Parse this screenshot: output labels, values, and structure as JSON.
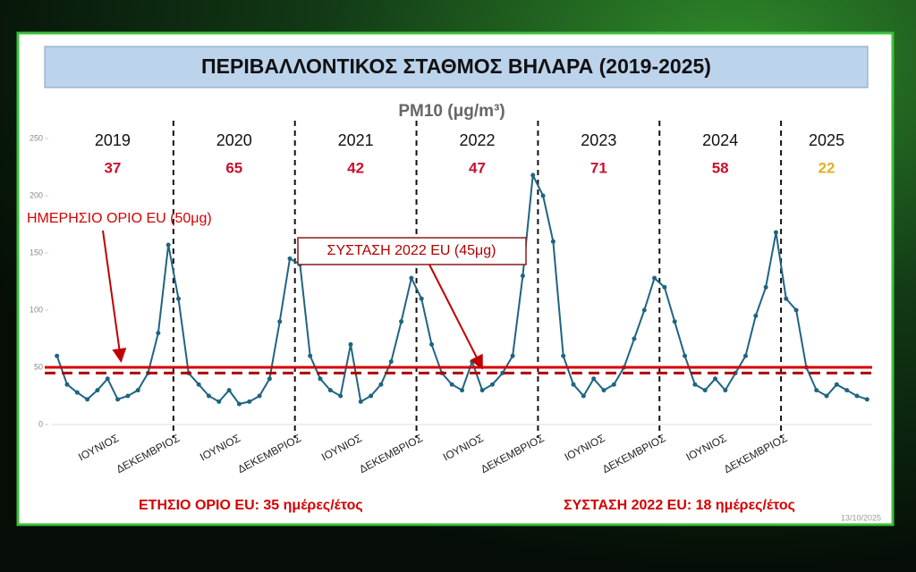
{
  "chart_data": {
    "type": "line",
    "title": "ΠΕΡΙΒΑΛΛΟΝΤΙΚΟΣ ΣΤΑΘΜΟΣ ΒΗΛΑΡΑ (2019-2025)",
    "subtitle": "PM10 (μg/m³)",
    "categories": [
      null,
      null,
      null,
      null,
      null,
      "ΙΟΥΝΙΟΣ",
      null,
      null,
      null,
      null,
      null,
      "ΔΕΚΕΜΒΡΙΟΣ",
      null,
      null,
      null,
      null,
      null,
      "ΙΟΥΝΙΟΣ",
      null,
      null,
      null,
      null,
      null,
      "ΔΕΚΕΜΒΡΙΟΣ",
      null,
      null,
      null,
      null,
      null,
      "ΙΟΥΝΙΟΣ",
      null,
      null,
      null,
      null,
      null,
      "ΔΕΚΕΜΒΡΙΟΣ",
      null,
      null,
      null,
      null,
      null,
      "ΙΟΥΝΙΟΣ",
      null,
      null,
      null,
      null,
      null,
      "ΔΕΚΕΜΒΡΙΟΣ",
      null,
      null,
      null,
      null,
      null,
      "ΙΟΥΝΙΟΣ",
      null,
      null,
      null,
      null,
      null,
      "ΔΕΚΕΜΒΡΙΟΣ",
      null,
      null,
      null,
      null,
      null,
      "ΙΟΥΝΙΟΣ",
      null,
      null,
      null,
      null,
      null,
      "ΔΕΚΕΜΒΡΙΟΣ",
      null,
      null,
      null,
      null,
      null,
      null,
      null,
      null,
      null
    ],
    "values": [
      60,
      35,
      28,
      22,
      30,
      40,
      22,
      25,
      30,
      45,
      80,
      157,
      110,
      45,
      35,
      25,
      20,
      30,
      18,
      20,
      25,
      40,
      90,
      145,
      140,
      60,
      40,
      30,
      25,
      70,
      20,
      25,
      35,
      55,
      90,
      128,
      110,
      70,
      45,
      35,
      30,
      55,
      30,
      35,
      45,
      60,
      130,
      218,
      200,
      160,
      60,
      35,
      25,
      40,
      30,
      35,
      50,
      75,
      100,
      128,
      120,
      90,
      60,
      35,
      30,
      40,
      30,
      45,
      60,
      95,
      120,
      168,
      110,
      100,
      50,
      30,
      25,
      35,
      30,
      25,
      22
    ],
    "color": "#1f6481",
    "ylim": [
      0,
      250
    ],
    "yticks": [
      0,
      50,
      100,
      150,
      200,
      250
    ],
    "years": [
      {
        "label": "2019",
        "count": 37,
        "color": "#c8102e"
      },
      {
        "label": "2020",
        "count": 65,
        "color": "#c8102e"
      },
      {
        "label": "2021",
        "count": 42,
        "color": "#c8102e"
      },
      {
        "label": "2022",
        "count": 47,
        "color": "#c8102e"
      },
      {
        "label": "2023",
        "count": 71,
        "color": "#c8102e"
      },
      {
        "label": "2024",
        "count": 58,
        "color": "#c8102e"
      },
      {
        "label": "2025",
        "count": 22,
        "color": "#e0b020"
      }
    ],
    "reference_lines": [
      {
        "value": 50,
        "label": "ΗΜΕΡΗΣΙΟ ΟΡΙΟ EU (50μg)",
        "color": "#d40000",
        "style": "solid"
      },
      {
        "value": 45,
        "label": "ΣΥΣΤΑΣΗ 2022 EU (45μg)",
        "color": "#b00000",
        "style": "dashed"
      }
    ],
    "footnotes": [
      "ΕΤΗΣΙΟ ΟΡΙΟ EU: 35 ημέρες/έτος",
      "ΣΥΣΤΑΣΗ 2022 EU: 18 ημέρες/έτος"
    ],
    "timestamp": "13/10/2025"
  }
}
